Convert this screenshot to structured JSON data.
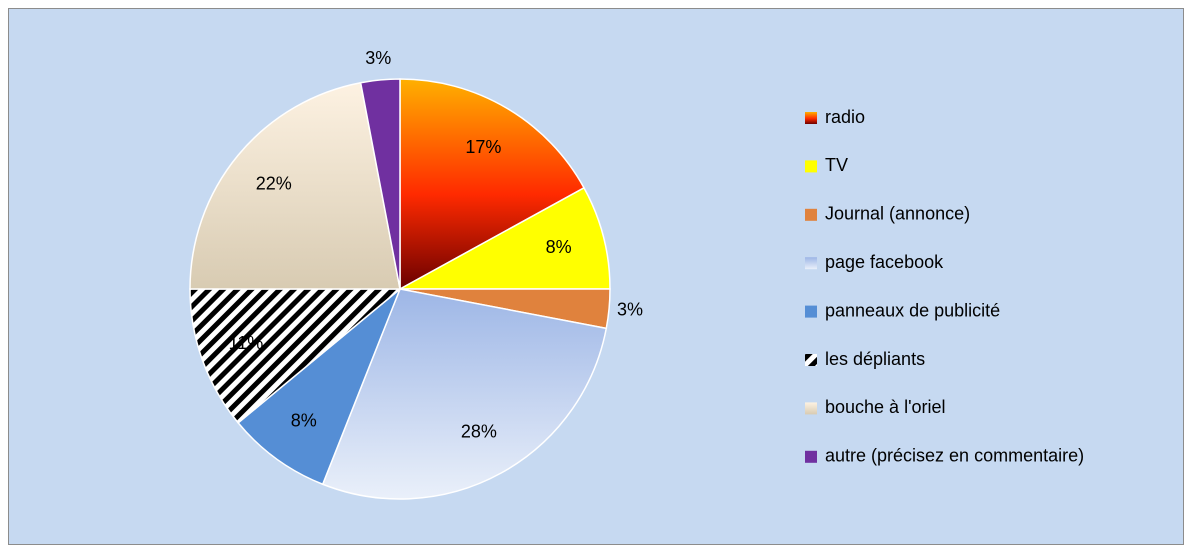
{
  "chart_data": {
    "type": "pie",
    "categories": [
      "radio",
      "TV",
      "Journal (annonce)",
      "page facebook",
      "panneaux de publicité",
      "les dépliants",
      "bouche à l'oriel",
      "autre (précisez en commentaire)"
    ],
    "values": [
      17,
      8,
      3,
      28,
      8,
      11,
      22,
      3
    ],
    "value_labels": [
      "17%",
      "8%",
      "3%",
      "28%",
      "8%",
      "11%",
      "22%",
      "3%"
    ],
    "colors": [
      "#ff3300",
      "#ffff00",
      "#e0823d",
      "#b4c8ec",
      "#558ed5",
      "#000000",
      "#eee2cc",
      "#7030a0"
    ],
    "fills": [
      "gradient",
      "solid",
      "solid",
      "gradient",
      "solid",
      "stripes",
      "gradient",
      "solid"
    ],
    "legend": "right"
  }
}
